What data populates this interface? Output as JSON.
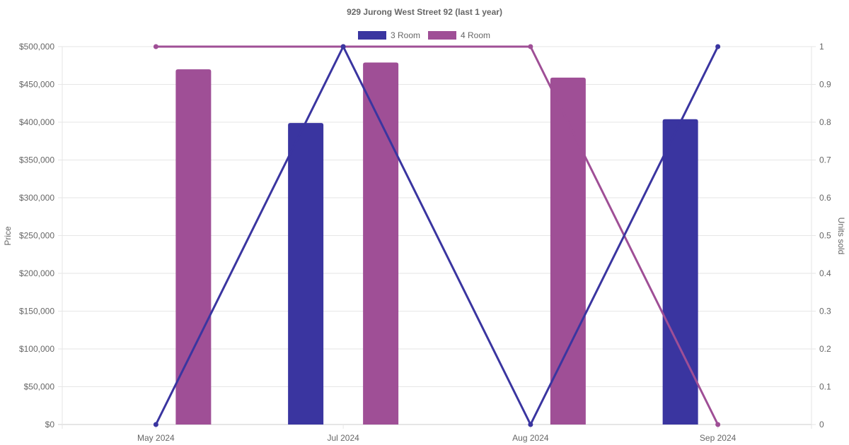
{
  "chart_data": {
    "type": "bar",
    "title": "929 Jurong West Street 92 (last 1 year)",
    "categories": [
      "May 2024",
      "Jul 2024",
      "Aug 2024",
      "Sep 2024"
    ],
    "y_left": {
      "label": "Price",
      "min": 0,
      "max": 500000,
      "step": 50000,
      "ticks": [
        "$0",
        "$50,000",
        "$100,000",
        "$150,000",
        "$200,000",
        "$250,000",
        "$300,000",
        "$350,000",
        "$400,000",
        "$450,000",
        "$500,000"
      ]
    },
    "y_right": {
      "label": "Units sold",
      "min": 0,
      "max": 1,
      "step": 0.1,
      "ticks": [
        "0",
        "0.1",
        "0.2",
        "0.3",
        "0.4",
        "0.5",
        "0.6",
        "0.7",
        "0.8",
        "0.9",
        "1"
      ]
    },
    "grid": true,
    "legend_position": "top-center",
    "series": [
      {
        "name": "3 Room",
        "color": "#3a35a0",
        "price": [
          null,
          399000,
          null,
          404000
        ],
        "units_sold": [
          0,
          1,
          0,
          1
        ]
      },
      {
        "name": "4 Room",
        "color": "#9f4f96",
        "price": [
          470000,
          479000,
          459000,
          null
        ],
        "units_sold": [
          1,
          1,
          1,
          0
        ]
      }
    ]
  }
}
